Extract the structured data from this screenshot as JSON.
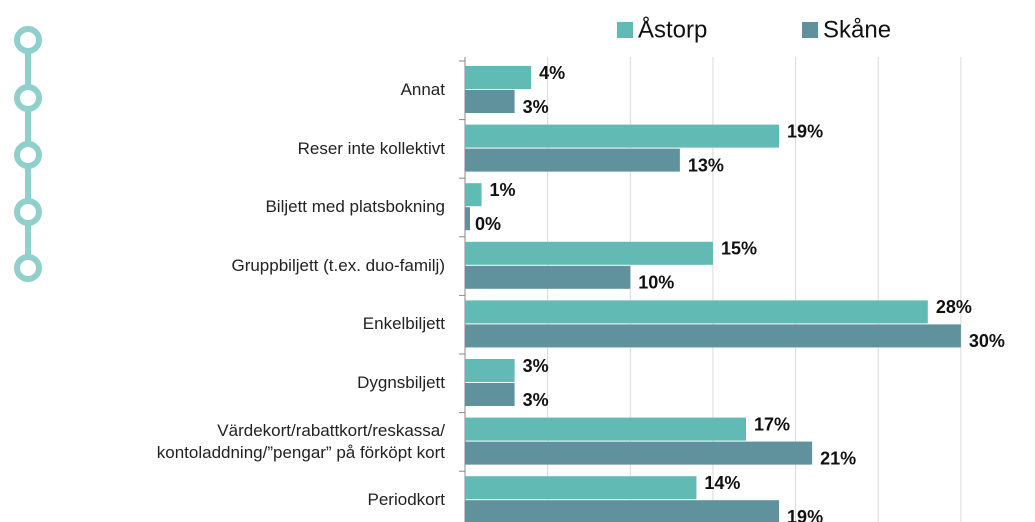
{
  "chart_data": {
    "type": "bar",
    "orientation": "horizontal",
    "categories": [
      "Annat",
      "Reser inte kollektivt",
      "Biljett med platsbokning",
      "Gruppbiljett (t.ex. duo-familj)",
      "Enkelbiljett",
      "Dygnsbiljett",
      "Värdekort/rabattkort/reskassa/\nkontoladdning/”pengar” på förköpt kort",
      "Periodkort"
    ],
    "series": [
      {
        "name": "Åstorp",
        "color": "#62bab5",
        "values": [
          4,
          19,
          1,
          15,
          28,
          3,
          17,
          14
        ],
        "value_labels": [
          "4%",
          "19%",
          "1%",
          "15%",
          "28%",
          "3%",
          "17%",
          "14%"
        ]
      },
      {
        "name": "Skåne",
        "color": "#5f929d",
        "values": [
          3,
          13,
          0,
          10,
          30,
          3,
          21,
          19
        ],
        "value_labels": [
          "3%",
          "13%",
          "0%",
          "10%",
          "30%",
          "3%",
          "21%",
          "19%"
        ]
      }
    ],
    "xlim": [
      0,
      34
    ],
    "xticks": [
      0,
      5,
      10,
      15,
      20,
      25,
      30
    ],
    "grid": true,
    "legend": "top"
  }
}
